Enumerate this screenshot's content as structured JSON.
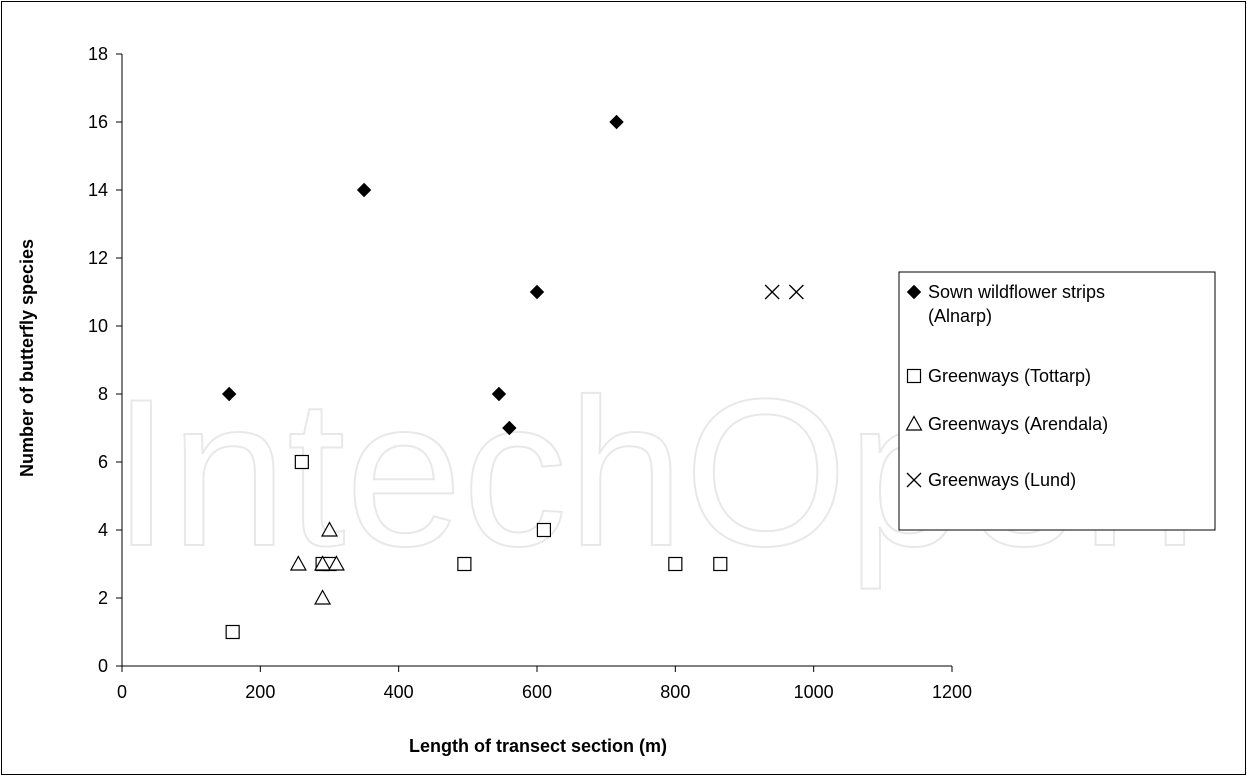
{
  "watermark_text": "IntechOpen",
  "chart_data": {
    "type": "scatter",
    "title": "",
    "xlabel": "Length of transect section (m)",
    "ylabel": "Number of butterfly species",
    "xlim": [
      0,
      1200
    ],
    "ylim": [
      0,
      18
    ],
    "x_ticks": [
      0,
      200,
      400,
      600,
      800,
      1000,
      1200
    ],
    "y_ticks": [
      0,
      2,
      4,
      6,
      8,
      10,
      12,
      14,
      16,
      18
    ],
    "grid": false,
    "legend_position": "right",
    "series": [
      {
        "name": "Sown wildflower strips (Alnarp)",
        "legend_lines": [
          "Sown wildflower strips",
          "(Alnarp)"
        ],
        "marker": "filled-diamond",
        "points": [
          [
            155,
            8
          ],
          [
            350,
            14
          ],
          [
            545,
            8
          ],
          [
            560,
            7
          ],
          [
            600,
            11
          ],
          [
            715,
            16
          ]
        ]
      },
      {
        "name": "Greenways (Tottarp)",
        "legend_lines": [
          "Greenways (Tottarp)"
        ],
        "marker": "open-square",
        "points": [
          [
            160,
            1
          ],
          [
            260,
            6
          ],
          [
            290,
            3
          ],
          [
            300,
            3
          ],
          [
            495,
            3
          ],
          [
            610,
            4
          ],
          [
            800,
            3
          ],
          [
            865,
            3
          ]
        ]
      },
      {
        "name": "Greenways (Arendala)",
        "legend_lines": [
          "Greenways (Arendala)"
        ],
        "marker": "open-triangle",
        "points": [
          [
            255,
            3
          ],
          [
            290,
            2
          ],
          [
            290,
            3
          ],
          [
            300,
            4
          ],
          [
            310,
            3
          ]
        ]
      },
      {
        "name": "Greenways (Lund)",
        "legend_lines": [
          "Greenways (Lund)"
        ],
        "marker": "cross",
        "points": [
          [
            940,
            11
          ],
          [
            975,
            11
          ]
        ]
      }
    ]
  }
}
